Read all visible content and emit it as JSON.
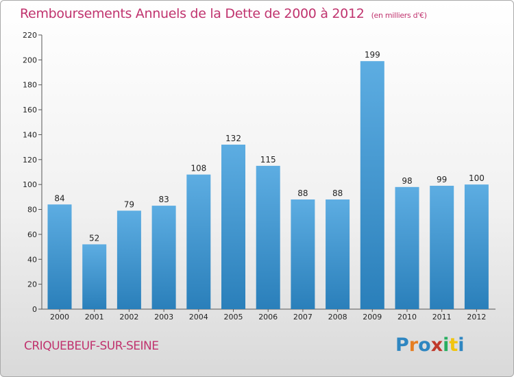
{
  "chart_data": {
    "type": "bar",
    "title": "Remboursements Annuels de la Dette de 2000 à 2012",
    "subtitle": "(en milliers d'€)",
    "categories": [
      "2000",
      "2001",
      "2002",
      "2003",
      "2004",
      "2005",
      "2006",
      "2007",
      "2008",
      "2009",
      "2010",
      "2011",
      "2012"
    ],
    "values": [
      84,
      52,
      79,
      83,
      108,
      132,
      115,
      88,
      88,
      199,
      98,
      99,
      100
    ],
    "yticks": [
      0,
      20,
      40,
      60,
      80,
      100,
      120,
      140,
      160,
      180,
      200,
      220
    ],
    "ylim": [
      0,
      220
    ],
    "xlabel": "",
    "ylabel": "",
    "grid": false,
    "bar_color_top": "#5dade2",
    "bar_color_bottom": "#2a7fba"
  },
  "footer": {
    "commune": "CRIQUEBEUF-SUR-SEINE"
  },
  "logo": {
    "text": "Proxiti",
    "letter_colors": [
      "#2e86c1",
      "#e67e22",
      "#2e86c1",
      "#c0392b",
      "#27ae60",
      "#f1c40f",
      "#2e86c1"
    ]
  },
  "colors": {
    "title": "#c0336e",
    "axis": "#555555"
  }
}
